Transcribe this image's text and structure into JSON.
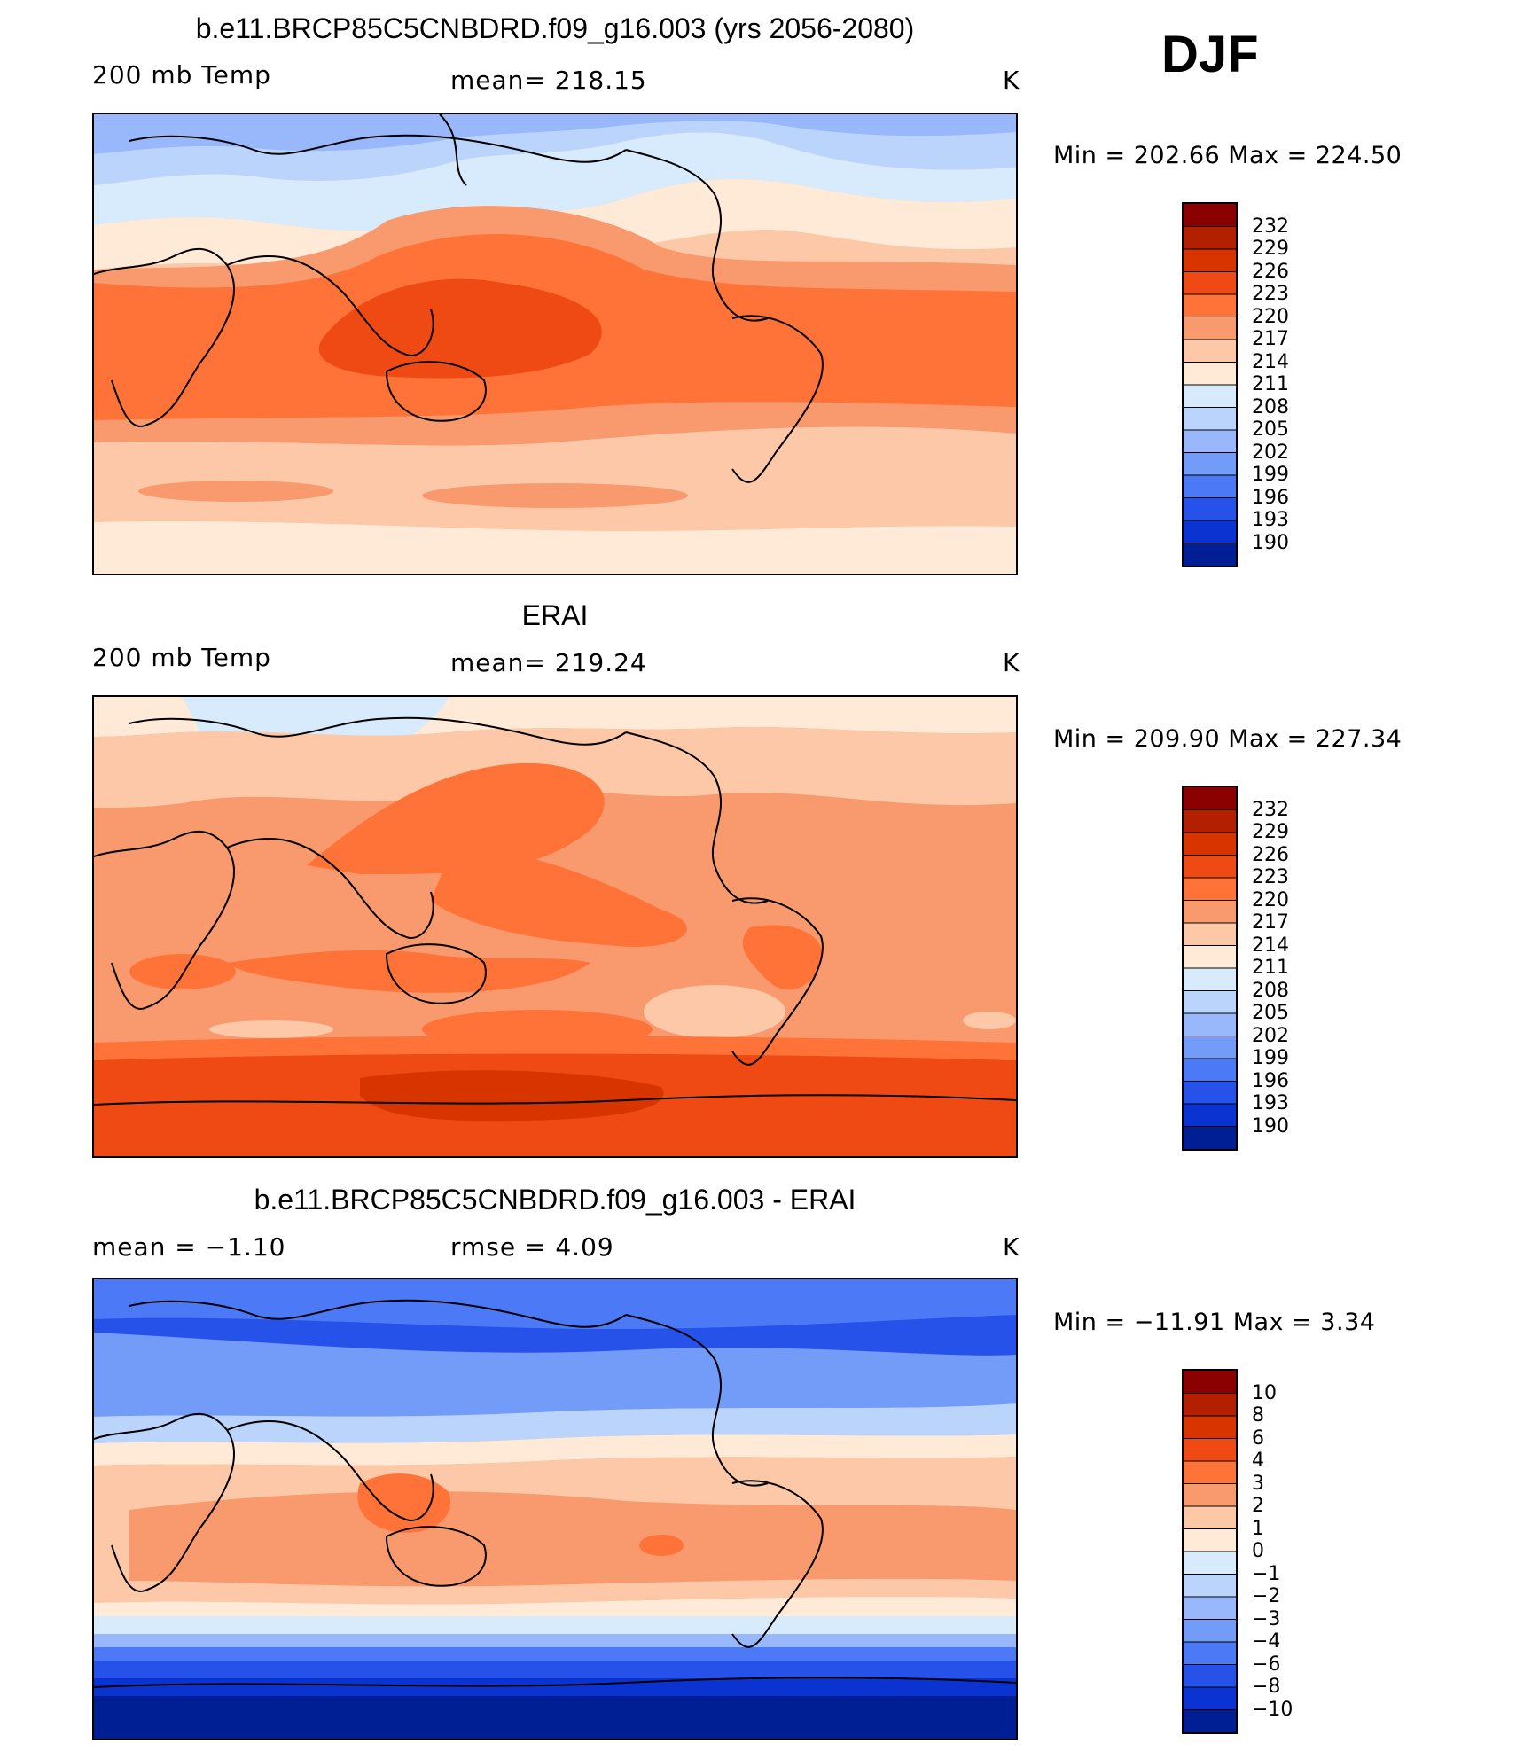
{
  "header": {
    "season": "DJF"
  },
  "panels": [
    {
      "id": "model",
      "title": "b.e11.BRCP85C5CNBDRD.f09_g16.003 (yrs 2056-2080)",
      "left_label": "200 mb Temp",
      "center_label": "mean=  218.15",
      "units": "K",
      "min_max": "Min  =  202.66  Max  =  224.50",
      "colorbar_labels": [
        "232",
        "229",
        "226",
        "223",
        "220",
        "217",
        "214",
        "211",
        "208",
        "205",
        "202",
        "199",
        "196",
        "193",
        "190"
      ],
      "colorbar_colors": [
        "#8b0000",
        "#b22000",
        "#d83400",
        "#f04a14",
        "#ff7338",
        "#f99a6e",
        "#fcc8a8",
        "#ffead7",
        "#d7ebfc",
        "#bad4fc",
        "#98b8fb",
        "#739cf9",
        "#4c79f6",
        "#2652ea",
        "#0a33d2",
        "#001f95"
      ]
    },
    {
      "id": "obs",
      "title": "ERAI",
      "left_label": "200 mb Temp",
      "center_label": "mean=  219.24",
      "units": "K",
      "min_max": "Min  =  209.90  Max  =  227.34",
      "colorbar_labels": [
        "232",
        "229",
        "226",
        "223",
        "220",
        "217",
        "214",
        "211",
        "208",
        "205",
        "202",
        "199",
        "196",
        "193",
        "190"
      ],
      "colorbar_colors": [
        "#8b0000",
        "#b22000",
        "#d83400",
        "#f04a14",
        "#ff7338",
        "#f99a6e",
        "#fcc8a8",
        "#ffead7",
        "#d7ebfc",
        "#bad4fc",
        "#98b8fb",
        "#739cf9",
        "#4c79f6",
        "#2652ea",
        "#0a33d2",
        "#001f95"
      ]
    },
    {
      "id": "diff",
      "title": "b.e11.BRCP85C5CNBDRD.f09_g16.003 - ERAI",
      "left_label": "mean =    −1.10",
      "center_label": "rmse =     4.09",
      "units": "K",
      "min_max": "Min  =  −11.91  Max  =     3.34",
      "colorbar_labels": [
        "10",
        "8",
        "6",
        "4",
        "3",
        "2",
        "1",
        "0",
        "−1",
        "−2",
        "−3",
        "−4",
        "−6",
        "−8",
        "−10"
      ],
      "colorbar_colors": [
        "#8b0000",
        "#b22000",
        "#d83400",
        "#f04a14",
        "#ff7338",
        "#f99a6e",
        "#fcc8a8",
        "#ffead7",
        "#d7ebfc",
        "#bad4fc",
        "#98b8fb",
        "#739cf9",
        "#4c79f6",
        "#2652ea",
        "#0a33d2",
        "#001f95"
      ]
    }
  ]
}
